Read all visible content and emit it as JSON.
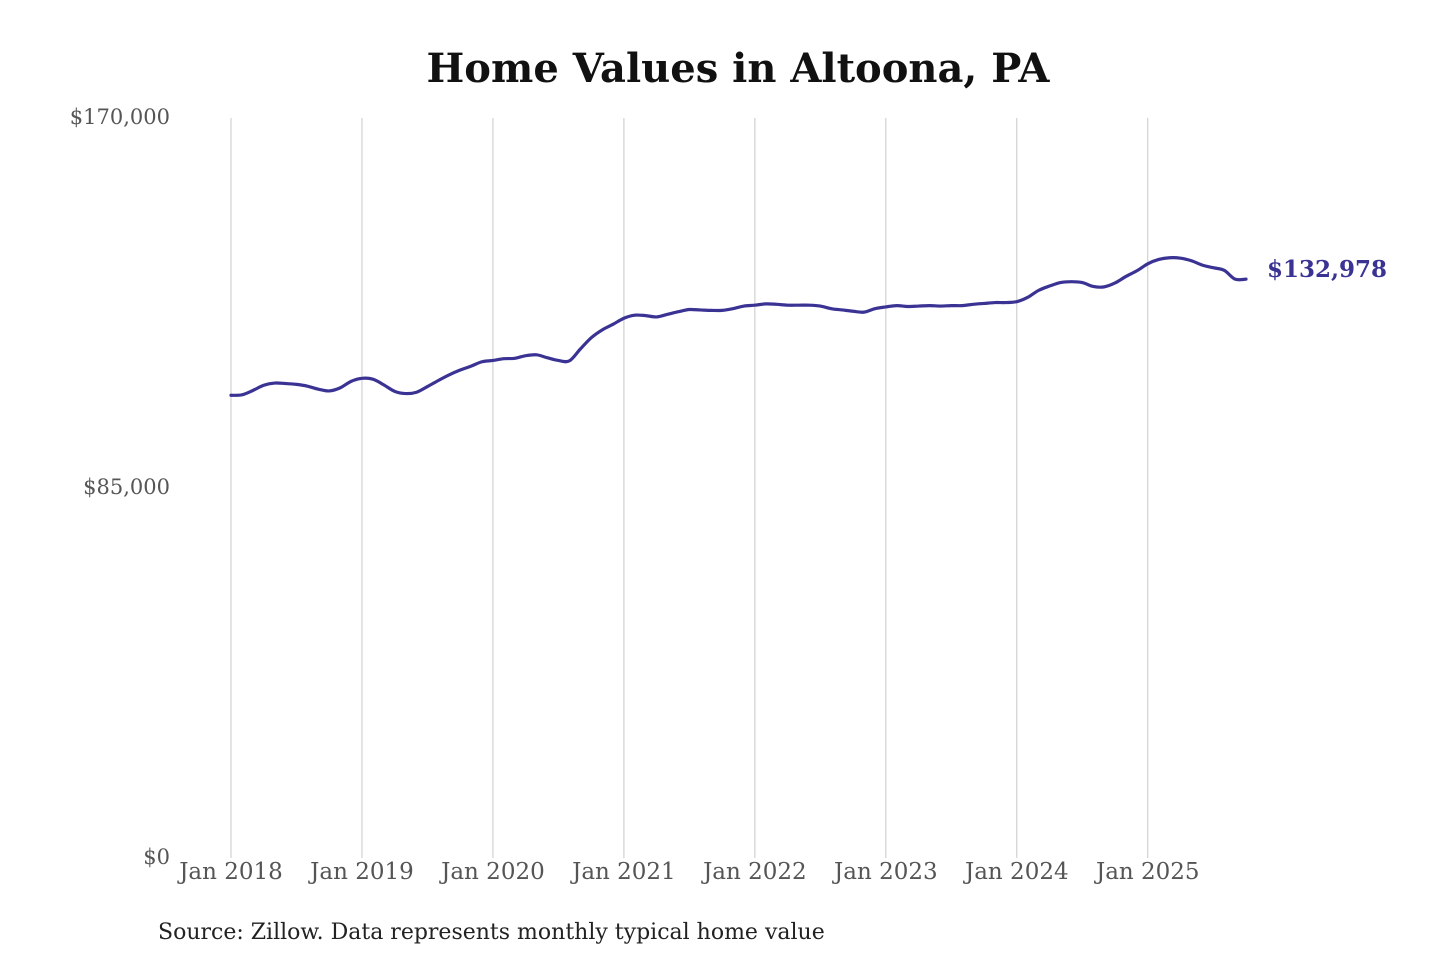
{
  "chart_data": {
    "type": "line",
    "title": "Home Values in Altoona, PA",
    "source": "Source: Zillow. Data represents monthly typical home value",
    "xlabel": "",
    "ylabel": "",
    "ylim": [
      0,
      170000
    ],
    "yticks": [
      {
        "value": 0,
        "label": "$0"
      },
      {
        "value": 85000,
        "label": "$85,000"
      },
      {
        "value": 170000,
        "label": "$170,000"
      }
    ],
    "xticks": [
      {
        "value": "2018-01",
        "label": "Jan 2018"
      },
      {
        "value": "2019-01",
        "label": "Jan 2019"
      },
      {
        "value": "2020-01",
        "label": "Jan 2020"
      },
      {
        "value": "2021-01",
        "label": "Jan 2021"
      },
      {
        "value": "2022-01",
        "label": "Jan 2022"
      },
      {
        "value": "2023-01",
        "label": "Jan 2023"
      },
      {
        "value": "2024-01",
        "label": "Jan 2024"
      },
      {
        "value": "2025-01",
        "label": "Jan 2025"
      }
    ],
    "grid": "vertical",
    "line_color": "#3a3394",
    "series": [
      {
        "x": [
          "2018-01",
          "2018-02",
          "2018-03",
          "2018-04",
          "2018-05",
          "2018-06",
          "2018-07",
          "2018-08",
          "2018-09",
          "2018-10",
          "2018-11",
          "2018-12",
          "2019-01",
          "2019-02",
          "2019-03",
          "2019-04",
          "2019-05",
          "2019-06",
          "2019-07",
          "2019-08",
          "2019-09",
          "2019-10",
          "2019-11",
          "2019-12",
          "2020-01",
          "2020-02",
          "2020-03",
          "2020-04",
          "2020-05",
          "2020-06",
          "2020-07",
          "2020-08",
          "2020-09",
          "2020-10",
          "2020-11",
          "2020-12",
          "2021-01",
          "2021-02",
          "2021-03",
          "2021-04",
          "2021-05",
          "2021-06",
          "2021-07",
          "2021-08",
          "2021-09",
          "2021-10",
          "2021-11",
          "2021-12",
          "2022-01",
          "2022-02",
          "2022-03",
          "2022-04",
          "2022-05",
          "2022-06",
          "2022-07",
          "2022-08",
          "2022-09",
          "2022-10",
          "2022-11",
          "2022-12",
          "2023-01",
          "2023-02",
          "2023-03",
          "2023-04",
          "2023-05",
          "2023-06",
          "2023-07",
          "2023-08",
          "2023-09",
          "2023-10",
          "2023-11",
          "2023-12",
          "2024-01",
          "2024-02",
          "2024-03",
          "2024-04",
          "2024-05",
          "2024-06",
          "2024-07",
          "2024-08",
          "2024-09",
          "2024-10",
          "2024-11",
          "2024-12",
          "2025-01",
          "2025-02",
          "2025-03",
          "2025-04",
          "2025-05",
          "2025-06",
          "2025-07",
          "2025-08",
          "2025-09",
          "2025-10"
        ],
        "y": [
          106300,
          106400,
          107400,
          108600,
          109100,
          109000,
          108800,
          108400,
          107700,
          107300,
          108000,
          109500,
          110200,
          110000,
          108700,
          107200,
          106700,
          107000,
          108300,
          109700,
          111000,
          112100,
          113000,
          114000,
          114300,
          114700,
          114800,
          115400,
          115600,
          114900,
          114300,
          114200,
          116900,
          119500,
          121300,
          122600,
          124000,
          124700,
          124600,
          124300,
          124900,
          125500,
          126000,
          125900,
          125800,
          125800,
          126200,
          126800,
          127000,
          127300,
          127200,
          127000,
          127000,
          127000,
          126800,
          126200,
          125900,
          125600,
          125400,
          126200,
          126600,
          126900,
          126700,
          126800,
          126900,
          126800,
          126900,
          126900,
          127200,
          127400,
          127600,
          127600,
          127800,
          128800,
          130400,
          131400,
          132200,
          132400,
          132200,
          131300,
          131200,
          132100,
          133600,
          134900,
          136500,
          137500,
          137900,
          137800,
          137200,
          136200,
          135600,
          135000,
          132978,
          132978
        ],
        "end_label": "$132,978"
      }
    ]
  }
}
